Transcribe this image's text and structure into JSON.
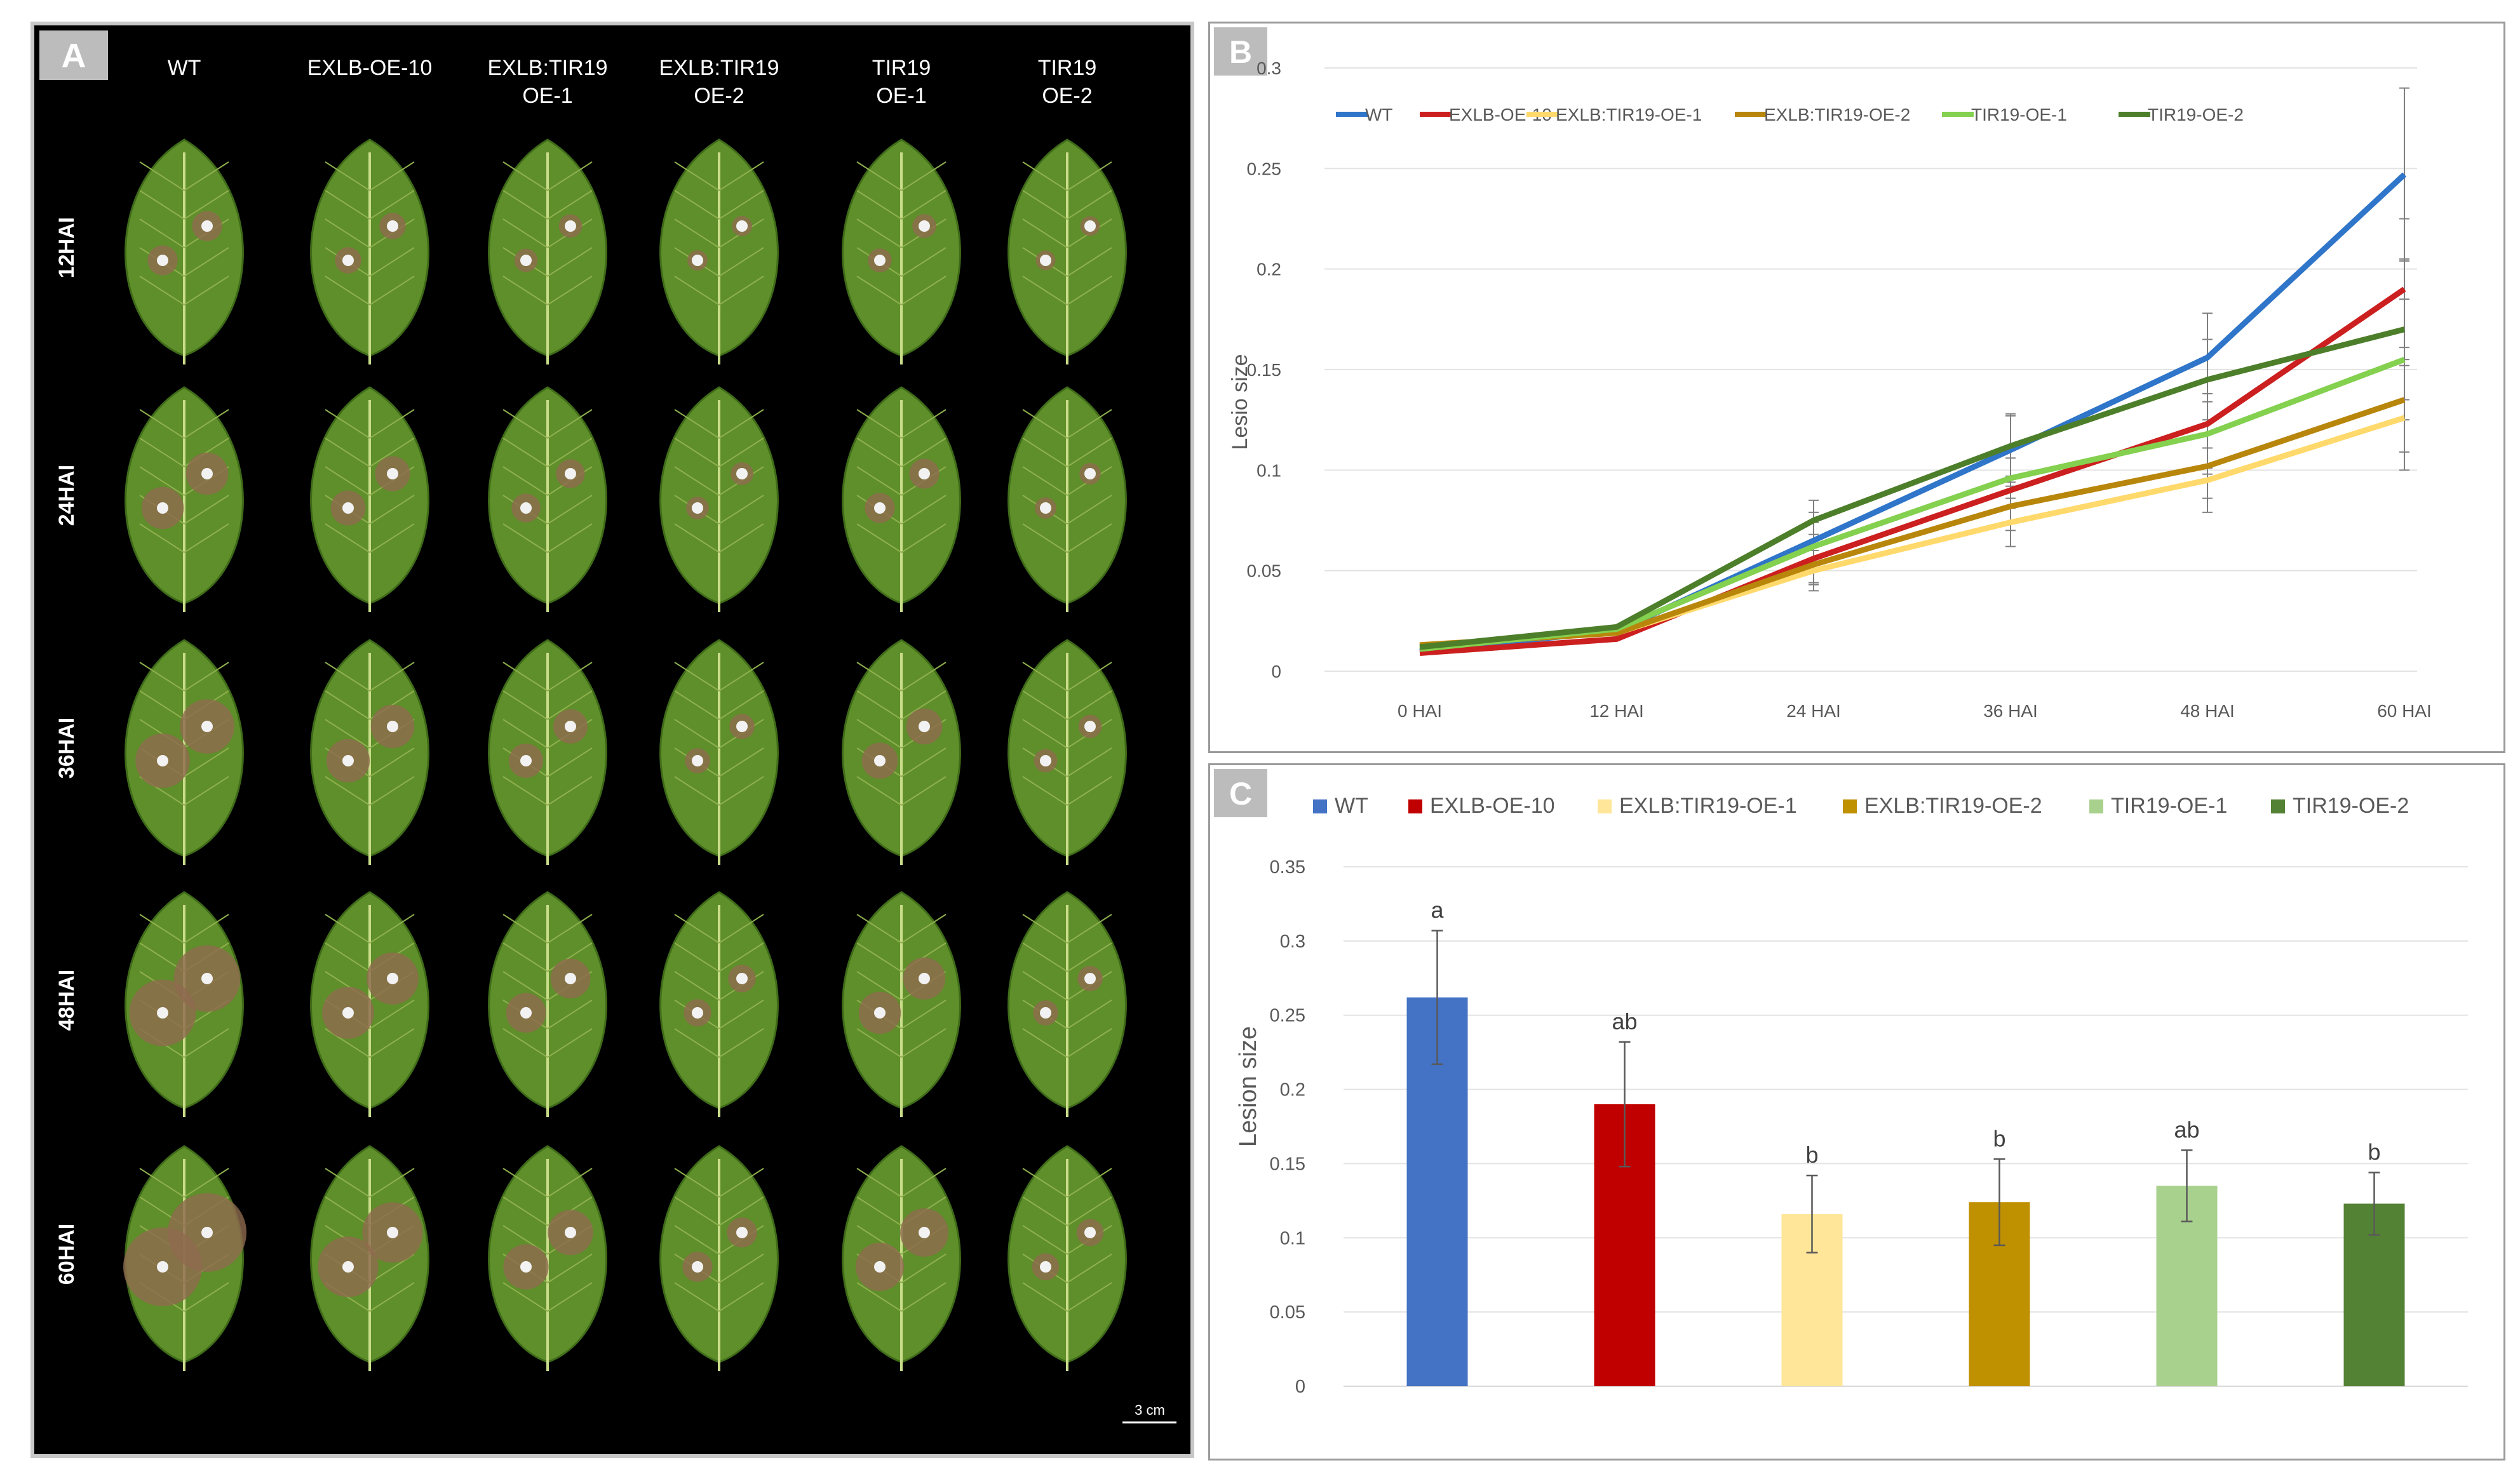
{
  "figure": {
    "panel_a": {
      "label": "A",
      "columns": [
        {
          "line1": "WT",
          "line2": ""
        },
        {
          "line1": "EXLB-OE-10",
          "line2": ""
        },
        {
          "line1": "EXLB:TIR19",
          "line2": "OE-1"
        },
        {
          "line1": "EXLB:TIR19",
          "line2": "OE-2"
        },
        {
          "line1": "TIR19",
          "line2": "OE-1"
        },
        {
          "line1": "TIR19",
          "line2": "OE-2"
        }
      ],
      "rows": [
        "12HAI",
        "24HAI",
        "36HAI",
        "48HAI",
        "60HAI"
      ],
      "scale_bar": "3 cm",
      "leaf_color": "#5f8f2a",
      "lesion_color": "#8f6a4f"
    },
    "panel_b": {
      "label": "B"
    },
    "panel_c": {
      "label": "C"
    }
  },
  "chart_data": [
    {
      "type": "line",
      "panel": "B",
      "title": "",
      "xlabel": "",
      "ylabel": "Lesio size",
      "categories": [
        "0 HAI",
        "12 HAI",
        "24 HAI",
        "36 HAI",
        "48 HAI",
        "60 HAI"
      ],
      "ylim": [
        0,
        0.3
      ],
      "yticks": [
        0,
        0.05,
        0.1,
        0.15,
        0.2,
        0.25,
        0.3
      ],
      "ytick_labels": [
        "0",
        "0.05",
        "0.1",
        "0.15",
        "0.2",
        "0.25",
        "0.3"
      ],
      "grid": true,
      "legend": "top",
      "series": [
        {
          "name": "WT",
          "color": "#2f75c9",
          "values": [
            0.01,
            0.02,
            0.065,
            0.11,
            0.156,
            0.247
          ],
          "errors": [
            0,
            0,
            0.014,
            0.018,
            0.022,
            0.043
          ]
        },
        {
          "name": "EXLB-OE-10",
          "color": "#cc1f1f",
          "values": [
            0.009,
            0.016,
            0.056,
            0.09,
            0.123,
            0.19
          ],
          "errors": [
            0,
            0,
            0.012,
            0.016,
            0.022,
            0.035
          ]
        },
        {
          "name": "EXLB:TIR19-OE-1",
          "color": "#ffd96b",
          "values": [
            0.013,
            0.019,
            0.05,
            0.074,
            0.095,
            0.126
          ],
          "errors": [
            0,
            0,
            0.01,
            0.012,
            0.016,
            0.026
          ]
        },
        {
          "name": "EXLB:TIR19-OE-2",
          "color": "#b8860b",
          "values": [
            0.013,
            0.019,
            0.053,
            0.082,
            0.102,
            0.135
          ],
          "errors": [
            0,
            0,
            0.01,
            0.012,
            0.016,
            0.026
          ]
        },
        {
          "name": "TIR19-OE-1",
          "color": "#84d04f",
          "values": [
            0.011,
            0.021,
            0.062,
            0.096,
            0.118,
            0.155
          ],
          "errors": [
            0,
            0,
            0.012,
            0.015,
            0.02,
            0.03
          ]
        },
        {
          "name": "TIR19-OE-2",
          "color": "#4d7f2b",
          "values": [
            0.012,
            0.022,
            0.075,
            0.112,
            0.145,
            0.17
          ],
          "errors": [
            0,
            0,
            0.01,
            0.015,
            0.02,
            0.035
          ]
        }
      ]
    },
    {
      "type": "bar",
      "panel": "C",
      "title": "",
      "xlabel": "",
      "ylabel": "Lesion size",
      "categories": [
        "WT",
        "EXLB-OE-10",
        "EXLB:TIR19-OE-1",
        "EXLB:TIR19-OE-2",
        "TIR19-OE-1",
        "TIR19-OE-2"
      ],
      "values": [
        0.262,
        0.19,
        0.116,
        0.124,
        0.135,
        0.123
      ],
      "errors": [
        0.045,
        0.042,
        0.026,
        0.029,
        0.024,
        0.021
      ],
      "significance": [
        "a",
        "ab",
        "b",
        "b",
        "ab",
        "b"
      ],
      "colors": [
        "#4472c4",
        "#c00000",
        "#ffe699",
        "#bf9000",
        "#a9d18e",
        "#548235"
      ],
      "ylim": [
        0,
        0.35
      ],
      "yticks": [
        0,
        0.05,
        0.1,
        0.15,
        0.2,
        0.25,
        0.3,
        0.35
      ],
      "ytick_labels": [
        "0",
        "0.05",
        "0.1",
        "0.15",
        "0.2",
        "0.25",
        "0.3",
        "0.35"
      ],
      "grid": true,
      "legend": "top"
    }
  ]
}
